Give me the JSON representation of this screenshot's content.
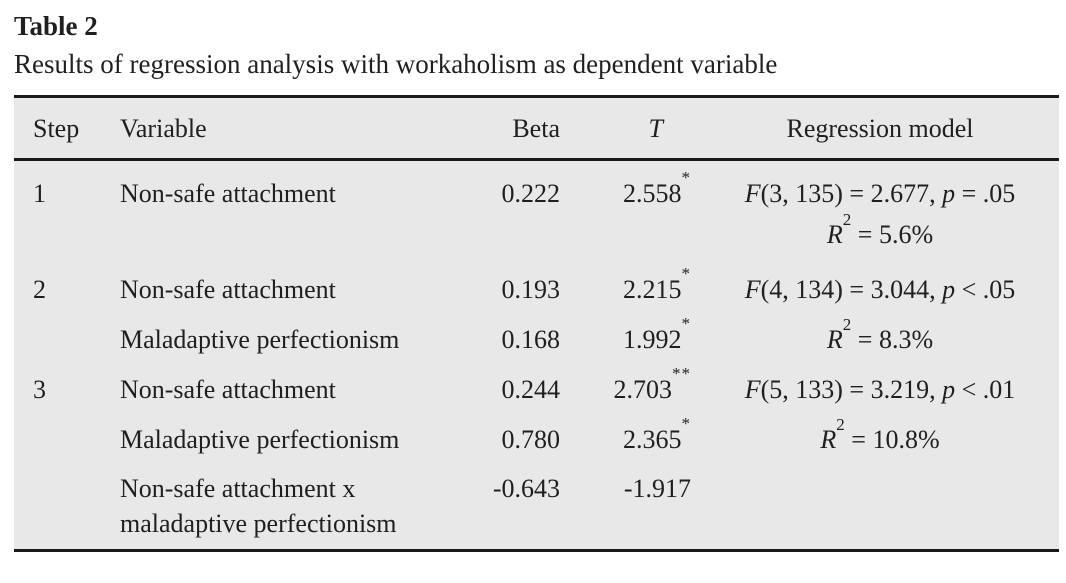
{
  "title": "Table 2",
  "subtitle": "Results of regression analysis with workaholism as dependent variable",
  "colors": {
    "table_background": "#e8e8e8",
    "rule": "#1a1a1a",
    "text": "#1f1f1f"
  },
  "table": {
    "headers": {
      "step": "Step",
      "variable": "Variable",
      "beta": "Beta",
      "t": "T",
      "model": "Regression model"
    },
    "rows": [
      {
        "step": "1",
        "variable": "Non-safe attachment",
        "beta": "0.222",
        "t": "2.558",
        "t_sig": "*",
        "model_f": "F",
        "model_f_rest": "(3, 135) = 2.677, ",
        "model_p": "p",
        "model_p_rest": " = .05",
        "model_r": "R",
        "model_r_sup": "2",
        "model_r_rest": " = 5.6%"
      },
      {
        "step": "2",
        "variable": "Non-safe attachment",
        "beta": "0.193",
        "t": "2.215",
        "t_sig": "*",
        "model_f": "F",
        "model_f_rest": "(4, 134) = 3.044, ",
        "model_p": "p",
        "model_p_rest": " < .05"
      },
      {
        "step": "",
        "variable": "Maladaptive perfectionism",
        "beta": "0.168",
        "t": "1.992",
        "t_sig": "*",
        "model_r": "R",
        "model_r_sup": "2",
        "model_r_rest": " = 8.3%"
      },
      {
        "step": "3",
        "variable": "Non-safe attachment",
        "beta": "0.244",
        "t": "2.703",
        "t_sig": "**",
        "model_f": "F",
        "model_f_rest": "(5, 133) = 3.219, ",
        "model_p": "p",
        "model_p_rest": " < .01"
      },
      {
        "step": "",
        "variable": "Maladaptive perfectionism",
        "beta": "0.780",
        "t": "2.365",
        "t_sig": "*",
        "model_r": "R",
        "model_r_sup": "2",
        "model_r_rest": " = 10.8%"
      },
      {
        "step": "",
        "variable": "Non-safe attachment x maladaptive perfectionism",
        "beta": "-0.643",
        "t": "-1.917",
        "t_sig": ""
      }
    ]
  }
}
